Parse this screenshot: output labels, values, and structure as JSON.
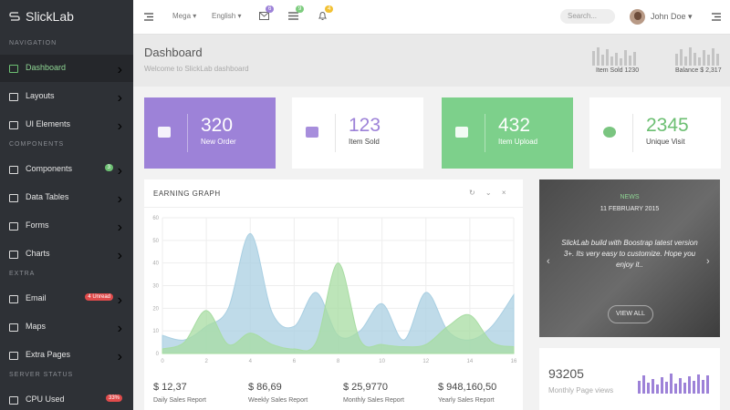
{
  "sidebar": {
    "brand": "SlickLab",
    "sections": [
      {
        "title": "NAVIGATION",
        "items": [
          {
            "label": "Dashboard"
          },
          {
            "label": "Layouts"
          },
          {
            "label": "UI Elements"
          }
        ]
      },
      {
        "title": "COMPONENTS",
        "items": [
          {
            "label": "Components",
            "badge": "3"
          },
          {
            "label": "Data Tables"
          },
          {
            "label": "Forms"
          },
          {
            "label": "Charts"
          }
        ]
      },
      {
        "title": "EXTRA",
        "items": [
          {
            "label": "Email",
            "badge": "4 Unread"
          },
          {
            "label": "Maps"
          },
          {
            "label": "Extra Pages"
          }
        ]
      },
      {
        "title": "SERVER STATUS",
        "items": [
          {
            "label": "CPU Used",
            "badge": "33%"
          }
        ]
      }
    ]
  },
  "topbar": {
    "menus": [
      "Mega",
      "English"
    ],
    "badges": [
      "6",
      "9",
      "4"
    ],
    "search": "Search...",
    "user": "John Doe"
  },
  "header": {
    "title": "Dashboard",
    "subtitle": "Welcome to SlickLab dashboard",
    "stats": [
      "Item Sold 1230",
      "Balance $ 2,317"
    ]
  },
  "tiles": [
    {
      "value": "320",
      "label": "New Order"
    },
    {
      "value": "123",
      "label": "Item Sold"
    },
    {
      "value": "432",
      "label": "Item Upload"
    },
    {
      "value": "2345",
      "label": "Unique Visit"
    }
  ],
  "earning_graph": {
    "title": "EARNING GRAPH",
    "chart_data": {
      "type": "area",
      "x": [
        0,
        1,
        2,
        3,
        4,
        5,
        6,
        7,
        8,
        9,
        10,
        11,
        12,
        13,
        14,
        15,
        16
      ],
      "series": [
        {
          "color": "#a9cfe2",
          "values": [
            8,
            6,
            12,
            20,
            53,
            18,
            12,
            27,
            8,
            10,
            22,
            6,
            27,
            10,
            6,
            12,
            26
          ]
        },
        {
          "color": "#a7dca2",
          "values": [
            2,
            5,
            19,
            4,
            9,
            4,
            2,
            5,
            40,
            6,
            4,
            3,
            4,
            12,
            17,
            5,
            3
          ]
        }
      ],
      "xlim": [
        0,
        16
      ],
      "xticks": [
        0,
        2,
        4,
        6,
        8,
        10,
        12,
        14,
        16
      ],
      "ylim": [
        0,
        60
      ],
      "yticks": [
        0,
        10,
        20,
        30,
        40,
        50,
        60
      ],
      "grid": true
    }
  },
  "sales": [
    {
      "value": "$ 12,37",
      "label": "Daily Sales Report"
    },
    {
      "value": "$ 86,69",
      "label": "Weekly Sales Report"
    },
    {
      "value": "$ 25,9770",
      "label": "Monthly Sales Report"
    },
    {
      "value": "$ 948,160,50",
      "label": "Yearly Sales Report"
    }
  ],
  "news": {
    "tag": "NEWS",
    "date": "11 FEBRUARY 2015",
    "text": "SlickLab build with Boostrap latest version 3+. Its very easy to customize. Hope you enjoy it..",
    "button": "VIEW ALL"
  },
  "page_views": {
    "value": "93205",
    "label": "Monthly Page views"
  }
}
